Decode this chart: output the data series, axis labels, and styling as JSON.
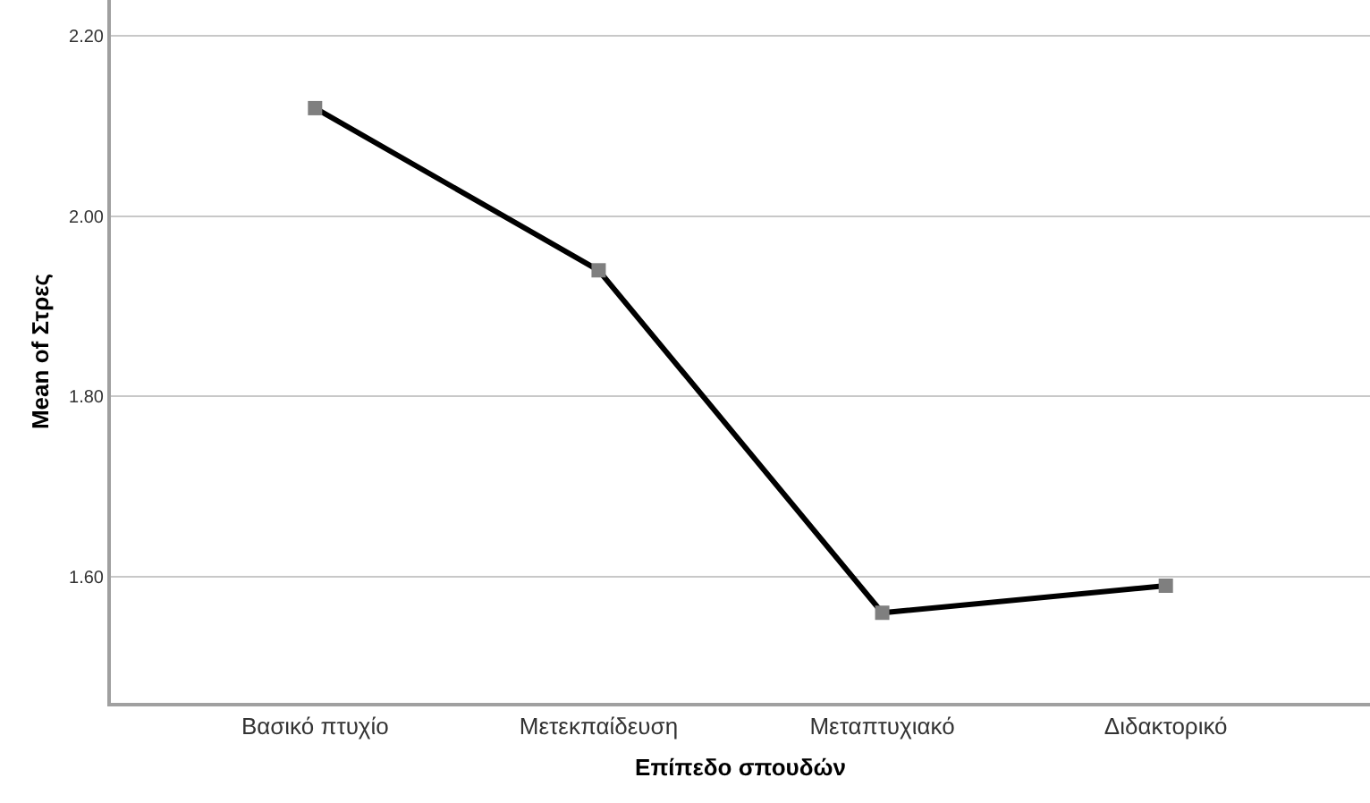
{
  "chart_data": {
    "type": "line",
    "xlabel": "Επίπεδο σπουδών",
    "ylabel": "Mean of Στρες",
    "categories": [
      "Βασικό πτυχίο",
      "Μετεκπαίδευση",
      "Μεταπτυχιακό",
      "Διδακτορικό"
    ],
    "series": [
      {
        "color": "#000000",
        "values": [
          2.12,
          1.94,
          1.56,
          1.59
        ]
      }
    ],
    "ylim": [
      1.46,
      2.24
    ],
    "yticks": [
      {
        "value": 1.6,
        "label": "1.60"
      },
      {
        "value": 1.8,
        "label": "1.80"
      },
      {
        "value": 2.0,
        "label": "2.00"
      },
      {
        "value": 2.2,
        "label": "2.20"
      }
    ],
    "grid": "y",
    "marker": "square",
    "line_style": "solid"
  }
}
